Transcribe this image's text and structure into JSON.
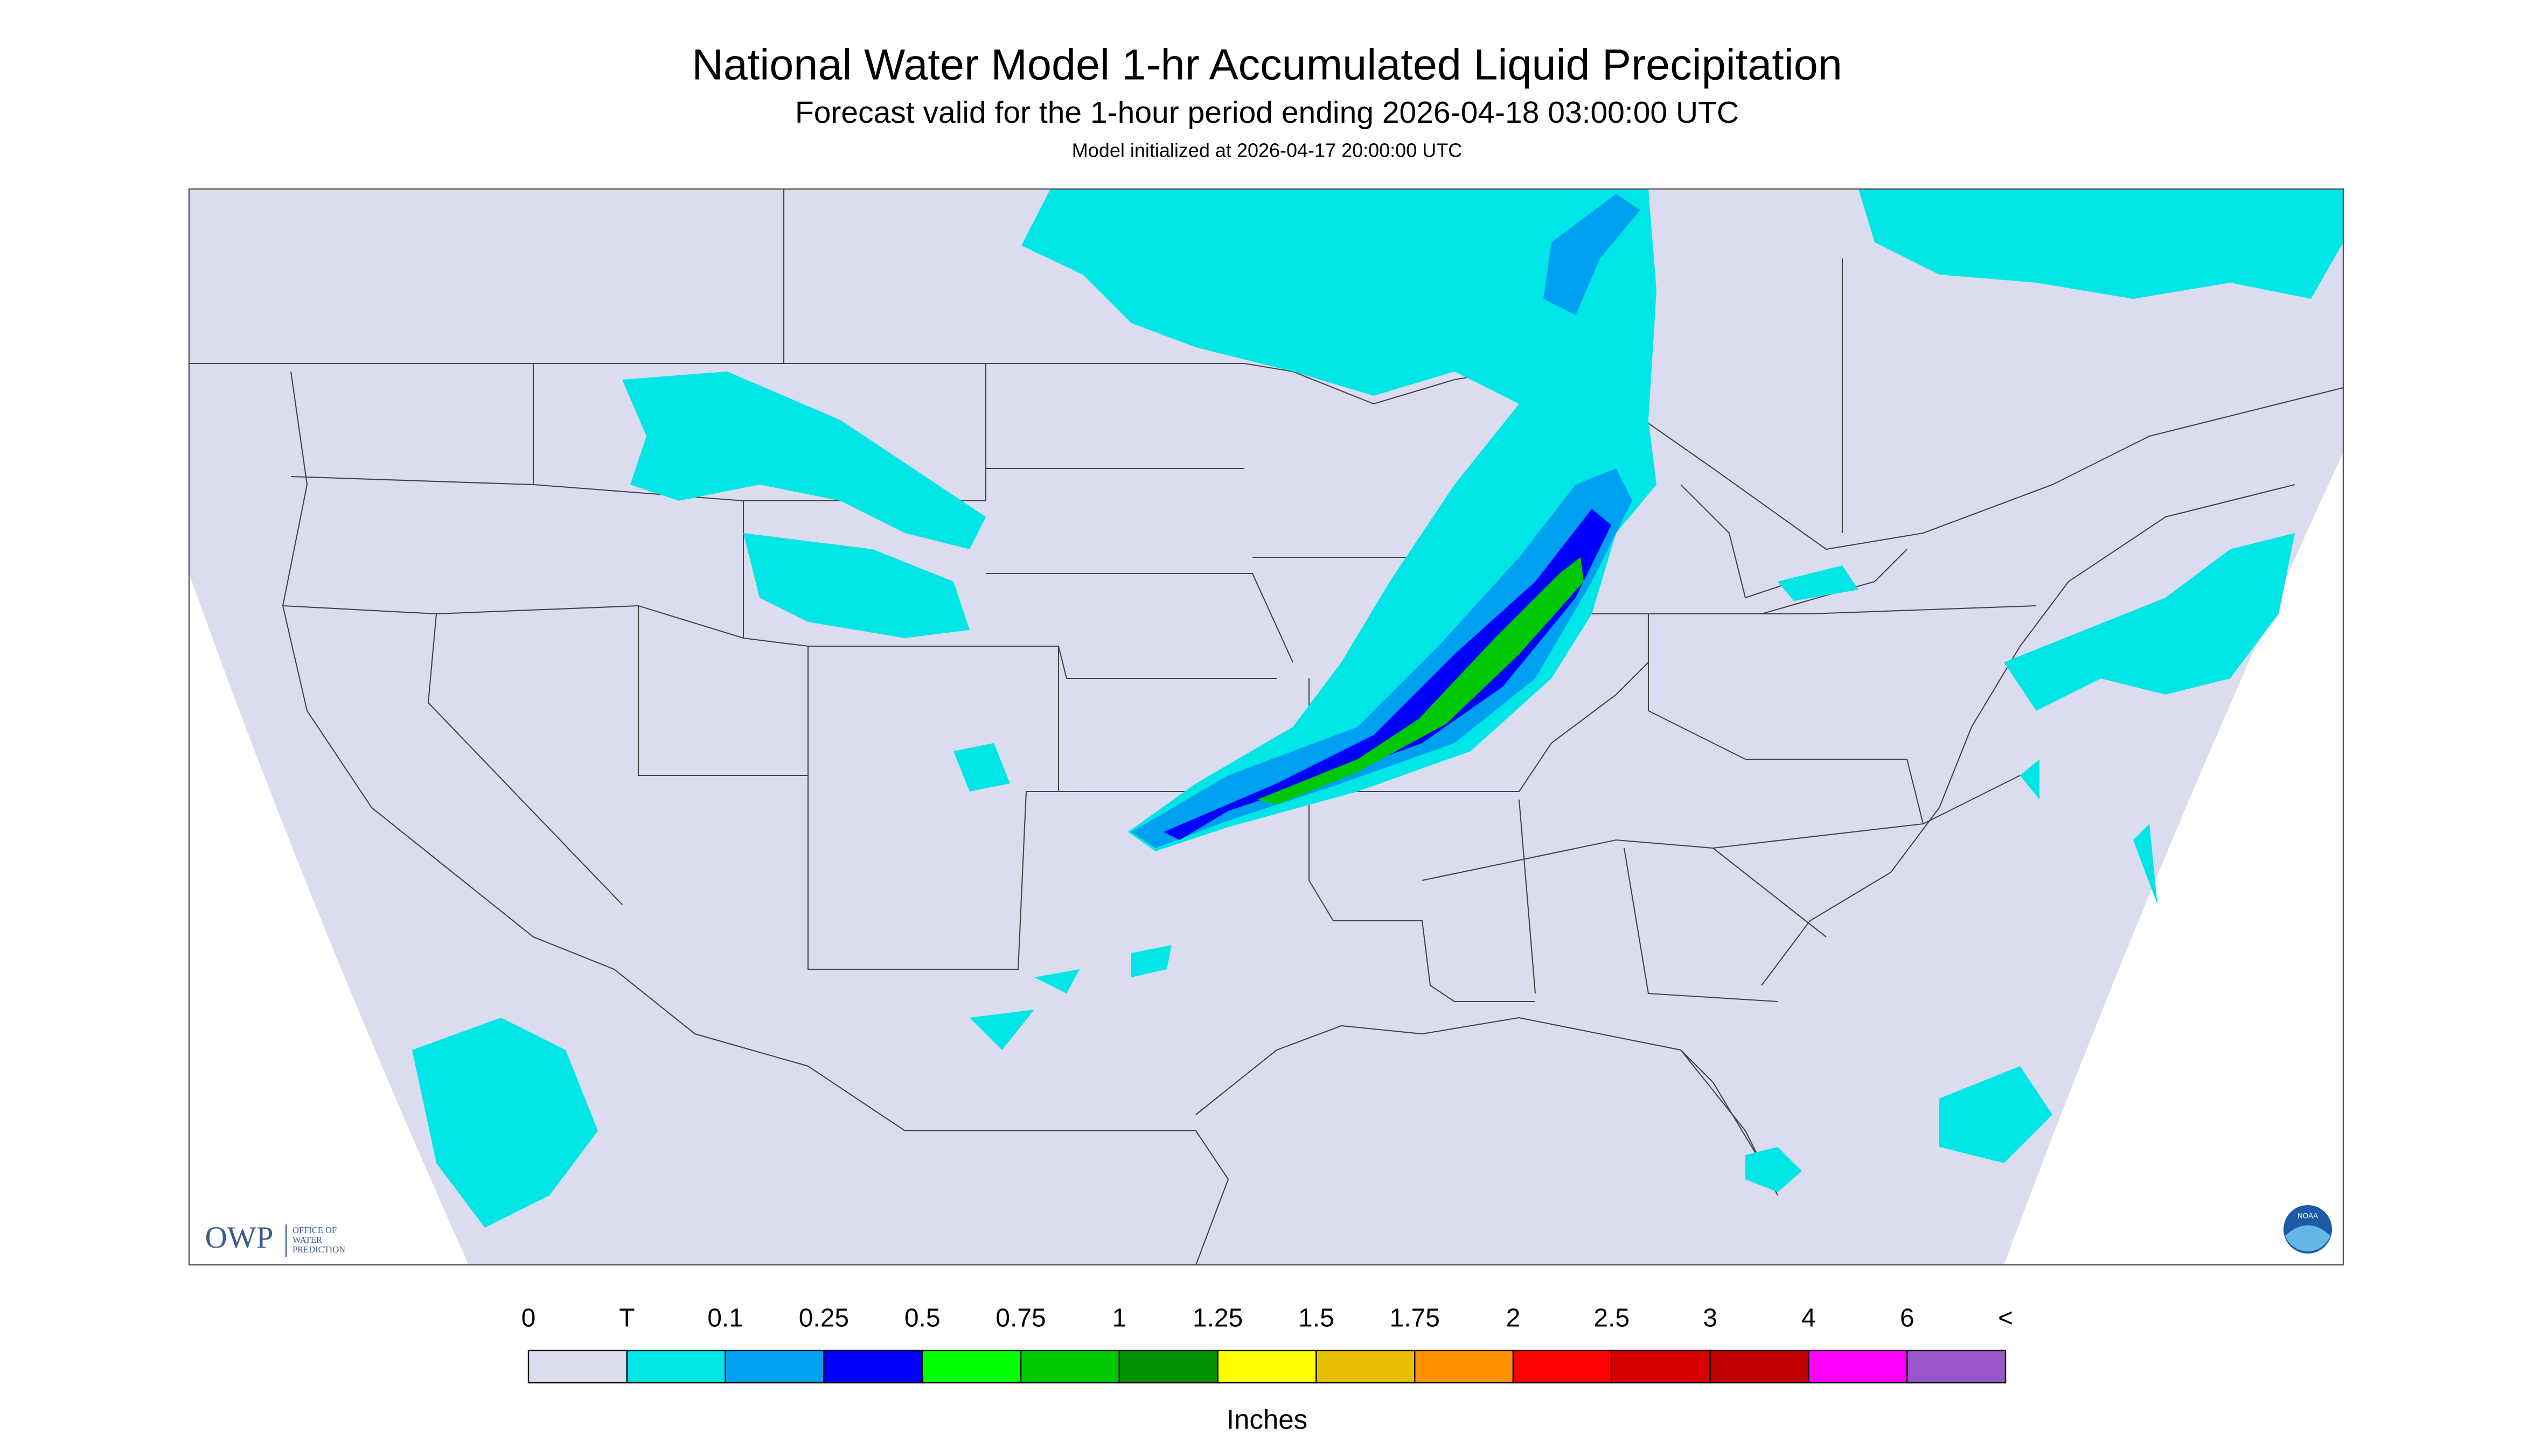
{
  "header": {
    "title": "National Water Model 1-hr Accumulated Liquid Precipitation",
    "subtitle": "Forecast valid for the 1-hour period ending 2026-04-18 03:00:00 UTC",
    "note": "Model initialized at 2026-04-17 20:00:00 UTC"
  },
  "logo": {
    "abbr": "OWP",
    "name": [
      "OFFICE OF",
      "WATER",
      "PREDICTION"
    ],
    "agency": "NOAA"
  },
  "legend": {
    "labels": [
      "0",
      "T",
      "0.1",
      "0.25",
      "0.5",
      "0.75",
      "1",
      "1.25",
      "1.5",
      "1.75",
      "2",
      "2.5",
      "3",
      "4",
      "6",
      "<"
    ],
    "colors": [
      "#dcdcf0",
      "#00e6e6",
      "#00a0f0",
      "#0000ff",
      "#00ff00",
      "#00c800",
      "#009000",
      "#ffff00",
      "#e6c000",
      "#ff9000",
      "#ff0000",
      "#d60000",
      "#c00000",
      "#ff00ff",
      "#9955c9"
    ],
    "unit": "Inches"
  }
}
